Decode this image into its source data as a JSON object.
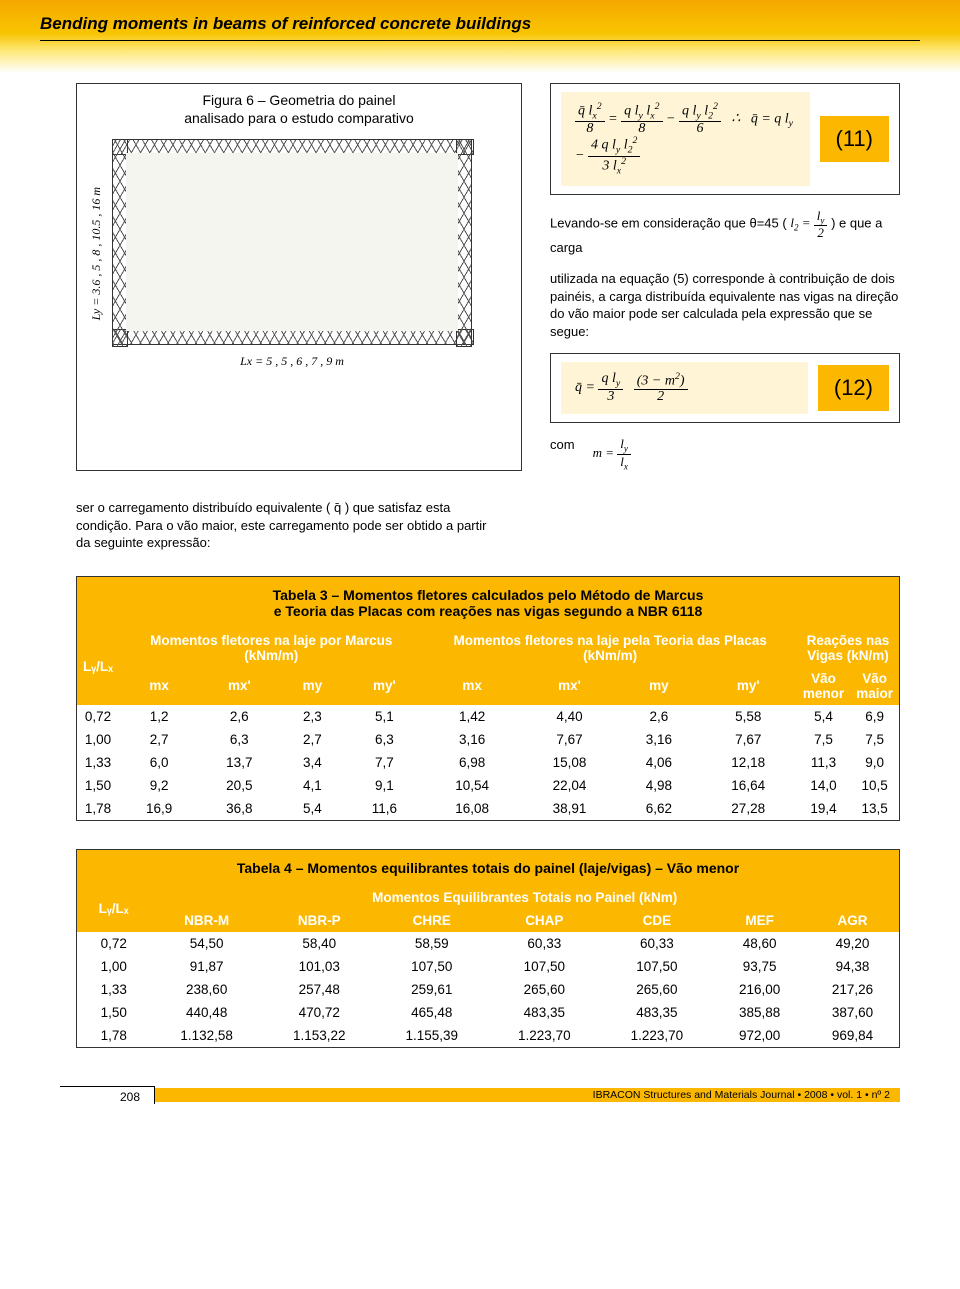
{
  "header": {
    "title": "Bending moments in beams of reinforced concrete buildings"
  },
  "figure6": {
    "caption_line1": "Figura 6 – Geometria do painel",
    "caption_line2": "analisado para o estudo comparativo",
    "ylabel": "Ly = 3.6 , 5 , 8 , 10.5 , 16 m",
    "xlabel": "Lx = 5 , 5 , 6 , 7 , 9 m"
  },
  "eq11": {
    "expr": "q̄ l²ₓ / 8 = q lᵧ l²ₓ / 8 − q lᵧ l²₂ / 6   ∴  q̄ = q lᵧ − 4 q lᵧ l²₂ / (3 l²ₓ)",
    "num": "(11)"
  },
  "inter_text": "Levando-se em consideração que θ=45 (",
  "inter_math": "l₂ = lᵧ / 2",
  "inter_text2": ") e que a carga",
  "para1": "utilizada na equação (5) corresponde à contribuição de dois painéis, a carga distribuída equivalente nas vigas na direção do vão maior pode ser calculada pela expressão que se segue:",
  "eq12": {
    "expr": "q̄ = (q lᵧ / 3) · (3 − m²) / 2",
    "num": "(12)"
  },
  "com": {
    "label": "com",
    "expr": "m = lᵧ / lₓ"
  },
  "midpara": "ser o carregamento distribuído equivalente ( q̄ ) que satisfaz esta condição. Para o vão maior, este carregamento pode ser obtido a partir da seguinte expressão:",
  "table3": {
    "title_l1": "Tabela 3 – Momentos fletores calculados pelo Método de Marcus",
    "title_l2": "e Teoria das Placas com reações nas vigas segundo a NBR 6118",
    "group1": "Momentos fletores na laje por Marcus (kNm/m)",
    "group2": "Momentos fletores na laje pela Teoria das Placas  (kNm/m)",
    "group3a": "Reações nas",
    "group3b": "Vigas (kN/m)",
    "col0": "Lᵧ/Lₓ",
    "cols1": [
      "mx",
      "mx'",
      "my",
      "my'"
    ],
    "cols2": [
      "mx",
      "mx'",
      "my",
      "my'"
    ],
    "cols3": [
      "Vão menor",
      "Vão maior"
    ],
    "rows": [
      [
        "0,72",
        "1,2",
        "2,6",
        "2,3",
        "5,1",
        "1,42",
        "4,40",
        "2,6",
        "5,58",
        "5,4",
        "6,9"
      ],
      [
        "1,00",
        "2,7",
        "6,3",
        "2,7",
        "6,3",
        "3,16",
        "7,67",
        "3,16",
        "7,67",
        "7,5",
        "7,5"
      ],
      [
        "1,33",
        "6,0",
        "13,7",
        "3,4",
        "7,7",
        "6,98",
        "15,08",
        "4,06",
        "12,18",
        "11,3",
        "9,0"
      ],
      [
        "1,50",
        "9,2",
        "20,5",
        "4,1",
        "9,1",
        "10,54",
        "22,04",
        "4,98",
        "16,64",
        "14,0",
        "10,5"
      ],
      [
        "1,78",
        "16,9",
        "36,8",
        "5,4",
        "11,6",
        "16,08",
        "38,91",
        "6,62",
        "27,28",
        "19,4",
        "13,5"
      ]
    ]
  },
  "table4": {
    "title": "Tabela 4 – Momentos equilibrantes totais do painel (laje/vigas) – Vão menor",
    "group": "Momentos Equilibrantes Totais no Painel (kNm)",
    "col0": "Lᵧ/Lₓ",
    "cols": [
      "NBR-M",
      "NBR-P",
      "CHRE",
      "CHAP",
      "CDE",
      "MEF",
      "AGR"
    ],
    "rows": [
      [
        "0,72",
        "54,50",
        "58,40",
        "58,59",
        "60,33",
        "60,33",
        "48,60",
        "49,20"
      ],
      [
        "1,00",
        "91,87",
        "101,03",
        "107,50",
        "107,50",
        "107,50",
        "93,75",
        "94,38"
      ],
      [
        "1,33",
        "238,60",
        "257,48",
        "259,61",
        "265,60",
        "265,60",
        "216,00",
        "217,26"
      ],
      [
        "1,50",
        "440,48",
        "470,72",
        "465,48",
        "483,35",
        "483,35",
        "385,88",
        "387,60"
      ],
      [
        "1,78",
        "1.132,58",
        "1.153,22",
        "1.155,39",
        "1.223,70",
        "1.223,70",
        "972,00",
        "969,84"
      ]
    ]
  },
  "footer": {
    "page": "208",
    "journal": "IBRACON Structures and Materials Journal • 2008 • vol. 1  • nº 2"
  }
}
